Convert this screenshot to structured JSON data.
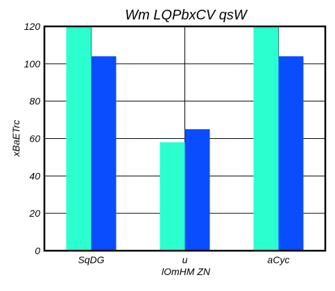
{
  "chart_data": {
    "type": "bar",
    "title": "Wm LQPbxCV qsW",
    "xlabel": "lOmHM  ZN",
    "ylabel": "xBaETrc",
    "categories": [
      "SqDG",
      "u",
      "aCyc"
    ],
    "series": [
      {
        "values": [
          120,
          58,
          120
        ]
      },
      {
        "values": [
          104,
          65,
          104
        ]
      }
    ],
    "ylim": [
      0,
      120
    ],
    "yticks": [
      "0",
      "20",
      "40",
      "60",
      "80",
      "100",
      "120"
    ],
    "grid": true,
    "colors": {
      "series": [
        "#2bffcf",
        "#0a4cff"
      ],
      "grid": "#000000",
      "frame": "#000000"
    }
  }
}
